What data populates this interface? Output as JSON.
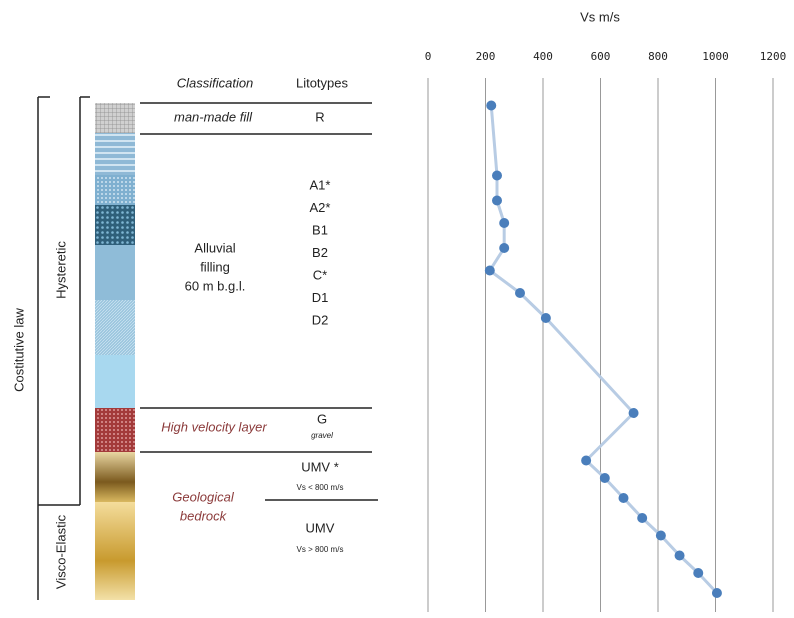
{
  "chart_data": {
    "type": "line",
    "x_label": "Vs m/s",
    "xlim": [
      0,
      1200
    ],
    "xticks": [
      0,
      200,
      400,
      600,
      800,
      1000,
      1200
    ],
    "ylim": [
      0,
      100
    ],
    "y_inverted": true,
    "grid": true,
    "series": [
      {
        "color": "#4a7ebb",
        "line_color": "#b8cce4",
        "x": [
          220,
          240,
          240,
          265,
          265,
          215,
          320,
          410,
          715,
          550,
          615,
          680,
          745,
          810,
          875,
          940,
          1005
        ],
        "y": [
          0.5,
          14.5,
          19.5,
          24,
          29,
          33.5,
          38,
          43,
          62,
          71.5,
          75,
          79,
          83,
          86.5,
          90.5,
          94,
          98
        ]
      }
    ]
  },
  "column": {
    "constitutive_law": "Costitutive law",
    "hysteretic": "Hysteretic",
    "visco_elastic": "Visco-Elastic",
    "classification": "Classification",
    "litotypes": "Litotypes",
    "fill": {
      "class": "man-made fill",
      "litotype": "R"
    },
    "alluvial": {
      "class": [
        "Alluvial",
        "filling",
        "60 m b.g.l."
      ],
      "litotypes": [
        "A1*",
        "A2*",
        "B1",
        "B2",
        "C*",
        "D1",
        "D2"
      ]
    },
    "high_velocity": {
      "class": "High velocity layer",
      "litotype": "G",
      "note": "gravel"
    },
    "bedrock": {
      "class": [
        "Geological",
        "bedrock"
      ],
      "upper": "UMV *",
      "upper_note": "Vs < 800 m/s",
      "lower": "UMV",
      "lower_note": "Vs > 800 m/s"
    }
  }
}
